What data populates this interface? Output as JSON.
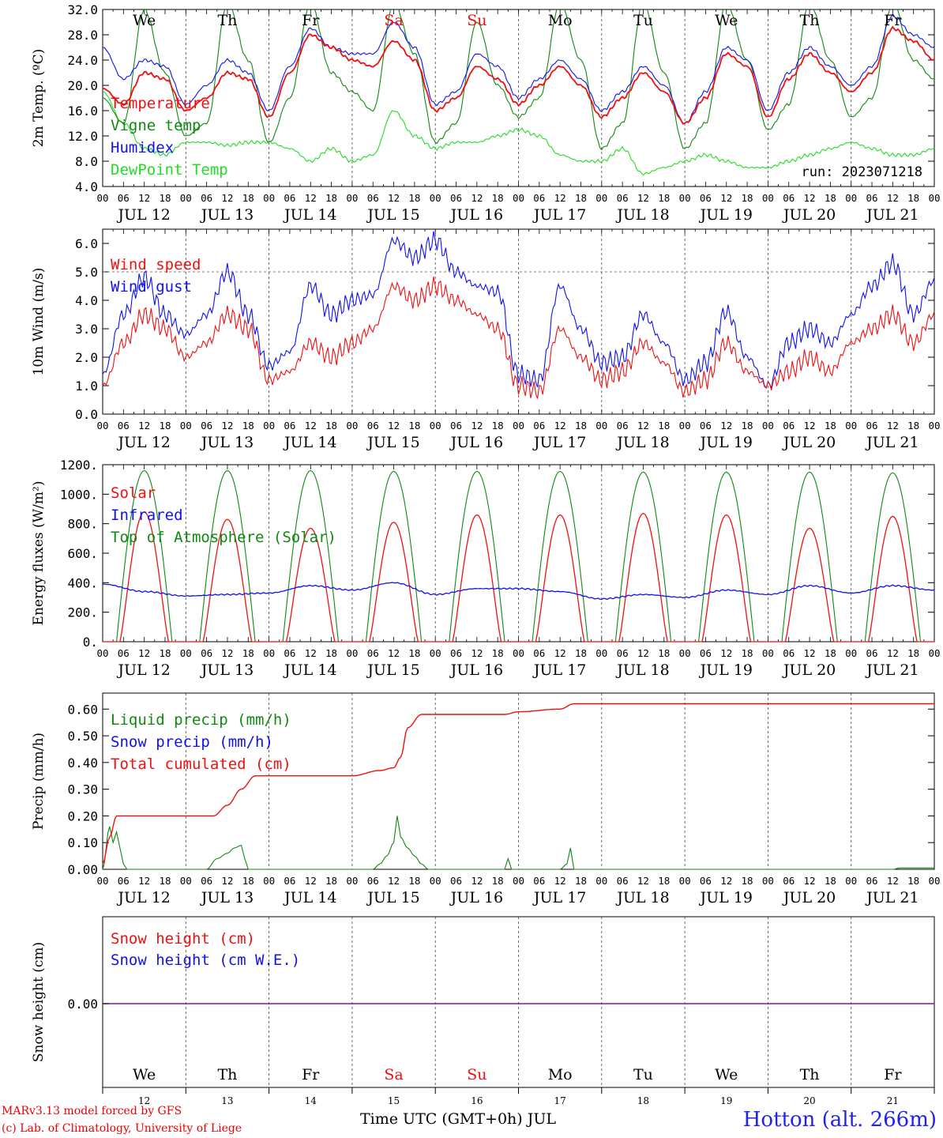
{
  "colors": {
    "red": "#ee1111",
    "green": "#118811",
    "blue": "#1111ee",
    "lime": "#22dd22",
    "purple": "#8811aa",
    "weekend": "#ee1111"
  },
  "days": [
    "We",
    "Th",
    "Fr",
    "Sa",
    "Su",
    "Mo",
    "Tu",
    "We",
    "Th",
    "Fr"
  ],
  "weekend_days": [
    "Sa",
    "Su"
  ],
  "date_labels": [
    "JUL 12",
    "JUL 13",
    "JUL 14",
    "JUL 15",
    "JUL 16",
    "JUL 17",
    "JUL 18",
    "JUL 19",
    "JUL 20",
    "JUL 21"
  ],
  "hour_ticks": [
    "00",
    "06",
    "12",
    "18"
  ],
  "last_tick": "00",
  "day_numbers": [
    "12",
    "13",
    "14",
    "15",
    "16",
    "17",
    "18",
    "19",
    "20",
    "21"
  ],
  "footer": {
    "model": "MARv3.13 model forced by GFS",
    "credit": "(c) Lab. of Climatology, University of Liege",
    "axis_title": "Time UTC (GMT+0h) JUL",
    "station": "Hotton (alt. 266m)"
  },
  "chart_data": [
    {
      "type": "line",
      "ylabel": "2m Temp. (ºC)",
      "ylim": [
        4,
        32
      ],
      "yticks": [
        "4.0",
        "8.0",
        "12.0",
        "16.0",
        "20.0",
        "24.0",
        "28.0",
        "32.0"
      ],
      "annotation": "run: 2023071218",
      "legend": [
        {
          "name": "Temperature",
          "color": "red"
        },
        {
          "name": "Vigne temp",
          "color": "green"
        },
        {
          "name": "Humidex",
          "color": "blue"
        },
        {
          "name": "DewPoint Temp",
          "color": "lime"
        }
      ],
      "series": [
        {
          "name": "Temperature",
          "color": "red",
          "x_hours": [
            0,
            6,
            12,
            18,
            24,
            30,
            36,
            42,
            48,
            54,
            60,
            66,
            72,
            78,
            84,
            90,
            96,
            102,
            108,
            114,
            120,
            126,
            132,
            138,
            144,
            150,
            156,
            162,
            168,
            174,
            180,
            186,
            192,
            198,
            204,
            210,
            216,
            222,
            228,
            234,
            240
          ],
          "values": [
            19.5,
            17,
            22,
            21,
            16,
            18,
            22,
            21,
            15,
            22,
            28,
            26,
            24,
            23,
            27,
            24,
            16,
            18,
            23,
            21,
            17,
            20,
            23,
            20,
            15,
            18,
            22,
            19,
            14,
            18,
            25,
            23,
            15,
            21,
            25,
            22,
            19,
            22,
            29,
            27,
            24
          ]
        },
        {
          "name": "Vigne temp",
          "color": "green",
          "x_hours": [
            0,
            6,
            12,
            18,
            24,
            30,
            36,
            42,
            48,
            54,
            60,
            66,
            72,
            78,
            84,
            90,
            96,
            102,
            108,
            114,
            120,
            126,
            132,
            138,
            144,
            150,
            156,
            162,
            168,
            174,
            180,
            186,
            192,
            198,
            204,
            210,
            216,
            222,
            228,
            234,
            240
          ],
          "values": [
            18,
            14,
            32,
            22,
            12,
            14,
            33,
            24,
            11,
            18,
            33,
            22,
            19,
            16,
            33,
            25,
            11,
            14,
            30,
            20,
            15,
            18,
            33,
            24,
            10,
            14,
            33,
            22,
            10,
            14,
            33,
            24,
            13,
            17,
            33,
            24,
            15,
            18,
            33,
            24,
            21
          ]
        },
        {
          "name": "Humidex",
          "color": "blue",
          "x_hours": [
            0,
            6,
            12,
            18,
            24,
            30,
            36,
            42,
            48,
            54,
            60,
            66,
            72,
            78,
            84,
            90,
            96,
            102,
            108,
            114,
            120,
            126,
            132,
            138,
            144,
            150,
            156,
            162,
            168,
            174,
            180,
            186,
            192,
            198,
            204,
            210,
            216,
            222,
            228,
            234,
            240
          ],
          "values": [
            26,
            21,
            24,
            23,
            17,
            20,
            24,
            22,
            16,
            23,
            29,
            26,
            25,
            25,
            30,
            26,
            17,
            19,
            25,
            23,
            18,
            21,
            24,
            21,
            16,
            19,
            23,
            20,
            14,
            19,
            26,
            24,
            16,
            22,
            26,
            23,
            20,
            23,
            31,
            28,
            26
          ]
        },
        {
          "name": "DewPoint Temp",
          "color": "lime",
          "x_hours": [
            0,
            6,
            12,
            18,
            24,
            30,
            36,
            42,
            48,
            54,
            60,
            66,
            72,
            78,
            84,
            90,
            96,
            102,
            108,
            114,
            120,
            126,
            132,
            138,
            144,
            150,
            156,
            162,
            168,
            174,
            180,
            186,
            192,
            198,
            204,
            210,
            216,
            222,
            228,
            234,
            240
          ],
          "values": [
            19,
            14,
            10,
            9,
            11,
            11,
            10.5,
            11,
            11,
            10,
            8,
            10,
            8,
            9,
            16,
            12,
            10,
            11,
            11,
            12,
            13,
            12,
            9,
            8,
            8,
            10,
            6,
            7,
            8,
            9,
            8,
            7,
            7,
            8,
            9,
            10,
            11,
            10,
            9,
            9,
            10
          ]
        }
      ]
    },
    {
      "type": "line",
      "ylabel": "10m Wind (m/s)",
      "ylim": [
        0,
        6.5
      ],
      "yticks": [
        "0.0",
        "1.0",
        "2.0",
        "3.0",
        "4.0",
        "5.0",
        "6.0"
      ],
      "hline": 5,
      "legend": [
        {
          "name": "Wind speed",
          "color": "red"
        },
        {
          "name": "Wind gust",
          "color": "blue"
        }
      ],
      "series": [
        {
          "name": "Wind speed",
          "color": "red",
          "x_hours": [
            0,
            6,
            12,
            18,
            24,
            30,
            36,
            42,
            48,
            54,
            60,
            66,
            72,
            78,
            84,
            90,
            96,
            102,
            108,
            114,
            120,
            126,
            132,
            138,
            144,
            150,
            156,
            162,
            168,
            174,
            180,
            186,
            192,
            198,
            204,
            210,
            216,
            222,
            228,
            234,
            240
          ],
          "values": [
            1,
            2.5,
            3.5,
            3,
            2,
            2.5,
            3.5,
            3,
            1.2,
            1.5,
            2.5,
            2,
            2.5,
            3,
            4.5,
            4,
            4.5,
            4,
            3.5,
            3,
            1,
            0.8,
            3,
            2,
            1.2,
            1.5,
            2.5,
            1.8,
            0.8,
            1.2,
            2.5,
            1.5,
            1,
            1.5,
            2,
            1.5,
            2.5,
            3,
            3.5,
            2.5,
            3.5
          ]
        },
        {
          "name": "Wind gust",
          "color": "blue",
          "x_hours": [
            0,
            6,
            12,
            18,
            24,
            30,
            36,
            42,
            48,
            54,
            60,
            66,
            72,
            78,
            84,
            90,
            96,
            102,
            108,
            114,
            120,
            126,
            132,
            138,
            144,
            150,
            156,
            162,
            168,
            174,
            180,
            186,
            192,
            198,
            204,
            210,
            216,
            222,
            228,
            234,
            240
          ],
          "values": [
            1.4,
            3.5,
            4.8,
            3.5,
            2.8,
            3.5,
            5,
            3.5,
            1.7,
            2.2,
            4.5,
            3.5,
            4,
            4.2,
            6.1,
            5.5,
            6.1,
            5,
            4.5,
            4.3,
            1.4,
            1.2,
            4.5,
            3,
            1.8,
            2,
            3.5,
            2.5,
            1.2,
            1.8,
            3.6,
            2,
            1,
            2.5,
            3,
            2.5,
            3.5,
            4.5,
            5.3,
            3.5,
            4.7
          ]
        }
      ]
    },
    {
      "type": "line",
      "ylabel": "Energy fluxes (W/m²)",
      "ylim": [
        0,
        1200
      ],
      "yticks": [
        "0.",
        "200.",
        "400.",
        "600.",
        "800.",
        "1000.",
        "1200."
      ],
      "legend": [
        {
          "name": "Solar",
          "color": "red"
        },
        {
          "name": "Infrared",
          "color": "blue"
        },
        {
          "name": "Top of Atmosphere (Solar)",
          "color": "green"
        }
      ],
      "daily_peaks": {
        "Solar": [
          880,
          830,
          770,
          810,
          860,
          860,
          870,
          860,
          770,
          850
        ],
        "Top of Atmosphere (Solar)": [
          1160,
          1160,
          1160,
          1155,
          1155,
          1155,
          1150,
          1150,
          1150,
          1145
        ]
      },
      "series_infrared": {
        "name": "Infrared",
        "color": "blue",
        "x_hours": [
          0,
          12,
          24,
          36,
          48,
          60,
          72,
          84,
          96,
          108,
          120,
          132,
          144,
          156,
          168,
          180,
          192,
          204,
          216,
          228,
          240
        ],
        "values": [
          390,
          340,
          310,
          320,
          330,
          380,
          350,
          400,
          320,
          360,
          360,
          340,
          290,
          320,
          300,
          350,
          320,
          380,
          330,
          380,
          350
        ]
      }
    },
    {
      "type": "line",
      "ylabel": "Precip (mm/h)",
      "ylim": [
        0,
        0.66
      ],
      "yticks": [
        "0.00",
        "0.10",
        "0.20",
        "0.30",
        "0.40",
        "0.50",
        "0.60"
      ],
      "legend": [
        {
          "name": "Liquid precip (mm/h)",
          "color": "green"
        },
        {
          "name": "Snow precip (mm/h)",
          "color": "blue"
        },
        {
          "name": "Total cumulated (cm)",
          "color": "red"
        }
      ],
      "series": [
        {
          "name": "Total cumulated (cm)",
          "color": "red",
          "x_hours": [
            0,
            2,
            4,
            8,
            24,
            32,
            36,
            40,
            44,
            48,
            60,
            72,
            80,
            84,
            86,
            88,
            92,
            96,
            108,
            116,
            120,
            132,
            136,
            144,
            180,
            240
          ],
          "values": [
            0.02,
            0.12,
            0.2,
            0.2,
            0.2,
            0.2,
            0.24,
            0.3,
            0.35,
            0.35,
            0.35,
            0.35,
            0.37,
            0.38,
            0.42,
            0.53,
            0.58,
            0.58,
            0.58,
            0.58,
            0.59,
            0.6,
            0.62,
            0.62,
            0.62,
            0.62
          ]
        },
        {
          "name": "Liquid precip (mm/h)",
          "color": "green",
          "x_hours": [
            0,
            2,
            3,
            4,
            5,
            6,
            7,
            30,
            33,
            36,
            38,
            40,
            41,
            42,
            78,
            80,
            82,
            84,
            85,
            86,
            88,
            90,
            92,
            94,
            116,
            117,
            118,
            132,
            134,
            135,
            136,
            228,
            230
          ],
          "values": [
            0,
            0.16,
            0.1,
            0.14,
            0.08,
            0.02,
            0,
            0,
            0.04,
            0.06,
            0.08,
            0.09,
            0.04,
            0,
            0,
            0.02,
            0.05,
            0.1,
            0.2,
            0.12,
            0.08,
            0.05,
            0.02,
            0,
            0,
            0.04,
            0,
            0,
            0.02,
            0.08,
            0,
            0,
            0.005
          ]
        },
        {
          "name": "Snow precip (mm/h)",
          "color": "blue",
          "x_hours": [
            0,
            240
          ],
          "values": [
            0,
            0
          ]
        }
      ]
    },
    {
      "type": "line",
      "ylabel": "Snow height (cm)",
      "yticks": [
        "0.00"
      ],
      "legend": [
        {
          "name": "Snow height (cm)",
          "color": "red"
        },
        {
          "name": "Snow height (cm W.E.)",
          "color": "blue"
        }
      ],
      "series": [
        {
          "name": "Snow height (cm)",
          "color": "red",
          "x_hours": [
            0,
            240
          ],
          "values": [
            0,
            0
          ]
        },
        {
          "name": "Snow height (cm W.E.)",
          "color": "blue",
          "x_hours": [
            0,
            240
          ],
          "values": [
            0,
            0
          ]
        }
      ]
    }
  ]
}
